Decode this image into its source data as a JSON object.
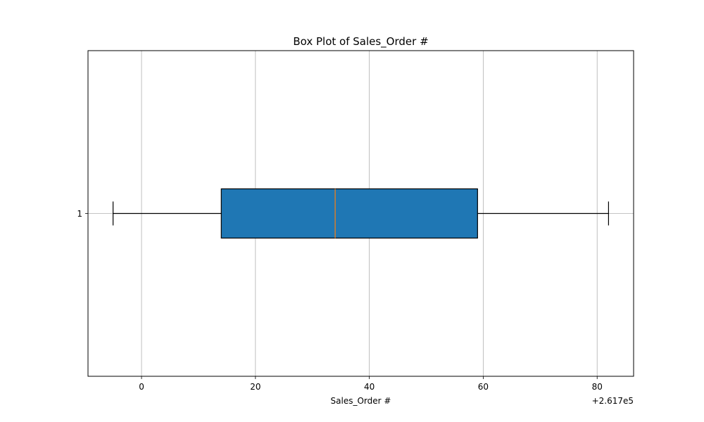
{
  "chart_data": {
    "type": "box",
    "title": "Box Plot of Sales_Order #",
    "xlabel": "Sales_Order #",
    "ylabel": "",
    "orientation": "horizontal",
    "offset_text": "+2.617e5",
    "offset_value": 261700,
    "xlim": [
      261690.6,
      261786.4
    ],
    "xticks": [
      261700,
      261720,
      261740,
      261760,
      261780
    ],
    "xtick_labels": [
      "0",
      "20",
      "40",
      "60",
      "80"
    ],
    "ytick_labels": [
      "1"
    ],
    "grid": true,
    "boxes": [
      {
        "label": "1",
        "whisker_low": 261695,
        "q1": 261714,
        "median": 261734,
        "q3": 261759,
        "whisker_high": 261782
      }
    ],
    "colors": {
      "box_fill": "#1f77b4",
      "median": "#ff7f0e",
      "lines": "#000000",
      "grid": "#b0b0b0"
    }
  }
}
